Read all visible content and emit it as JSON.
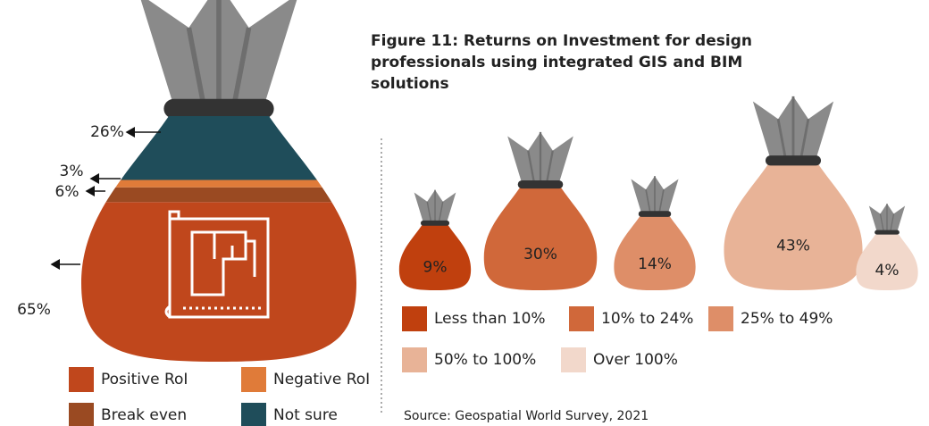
{
  "chart_data": [
    {
      "type": "bag-stack",
      "series": [
        {
          "name": "Positive RoI",
          "color": "#c0471c",
          "values": [
            65
          ],
          "value_labels": [
            "65%"
          ]
        },
        {
          "name": "Negative RoI",
          "color": "#e07b39",
          "values": [
            3
          ],
          "value_labels": [
            "3%"
          ]
        },
        {
          "name": "Break even",
          "color": "#9a4a22",
          "values": [
            6
          ],
          "value_labels": [
            "6%"
          ]
        },
        {
          "name": "Not sure",
          "color": "#1f4d5a",
          "values": [
            26
          ],
          "value_labels": [
            "26%"
          ]
        }
      ]
    },
    {
      "type": "bags",
      "title": "Figure 11: Returns on Investment for design professionals using integrated GIS and BIM solutions",
      "categories": [
        "Less than 10%",
        "10% to 24%",
        "25% to 49%",
        "50% to 100%",
        "Over 100%"
      ],
      "values": [
        9,
        30,
        14,
        43,
        4
      ],
      "value_labels": [
        "9%",
        "30%",
        "14%",
        "43%",
        "4%"
      ],
      "colors": [
        "#c0400e",
        "#d0683a",
        "#de8e68",
        "#e8b397",
        "#f2d8cb"
      ],
      "source": "Source: Geospatial World Survey, 2021"
    }
  ]
}
